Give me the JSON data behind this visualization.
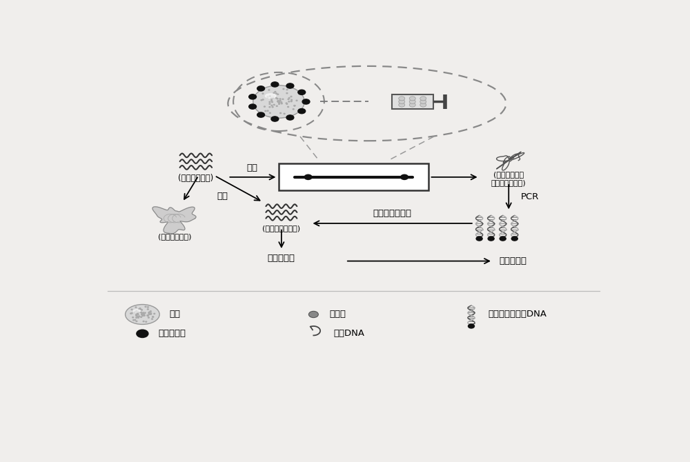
{
  "bg_color": "#f0eeec",
  "labels": {
    "zheng_shai": "正筛",
    "fan_shai": "反筛",
    "you_hua": "(优化核酸文库)",
    "qi_shi": "(起始核酸文库)",
    "ci_ji": "(次一级核酸文库)",
    "yu_biao_1": "(与靶标蛋白质",
    "yu_biao_2": "结合的核酸文库)",
    "pcr": "PCR",
    "dan_lian": "单链文库的制备",
    "qin_he": "亲和力测定",
    "ke_long": "克隆和测序",
    "wei_zhu": "微珠",
    "biao_dan": "靶标蛋白质",
    "feng_bi": "封闭剂",
    "dan_lian_dna": "单链DNA",
    "sheng_wu": "生物素化的双链DNA"
  }
}
